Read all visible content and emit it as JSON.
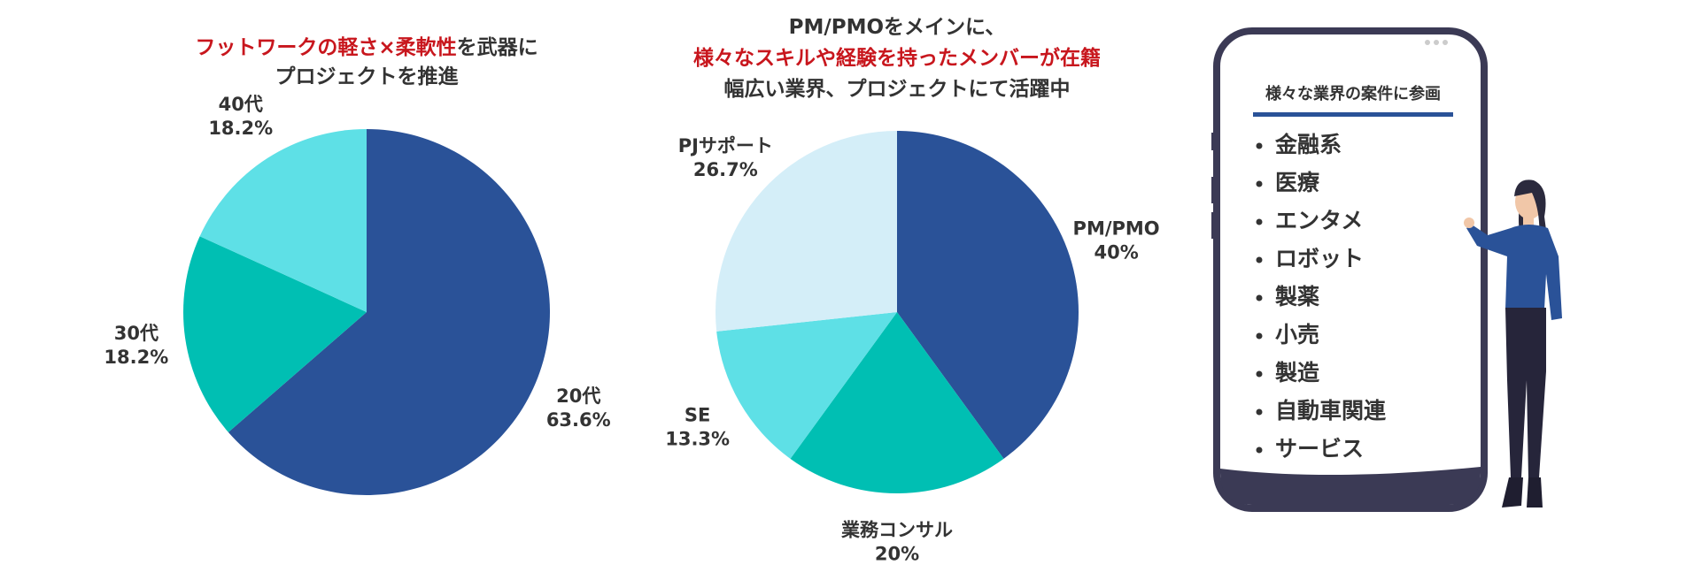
{
  "chart_data": [
    {
      "type": "pie",
      "title": [
        [
          {
            "text": "フットワークの軽さ×柔軟性",
            "color": "#c8161d"
          },
          {
            "text": "を武器に",
            "color": "#333333"
          }
        ],
        [
          {
            "text": "プロジェクトを推進",
            "color": "#333333"
          }
        ]
      ],
      "categories": [
        "20代",
        "30代",
        "40代"
      ],
      "values": [
        63.6,
        18.2,
        18.2
      ],
      "value_labels": [
        "63.6%",
        "18.2%",
        "18.2%"
      ],
      "colors": [
        "#2a5298",
        "#00bfb3",
        "#5ee0e6"
      ]
    },
    {
      "type": "pie",
      "title": [
        [
          {
            "text": "PM/PMOをメインに、",
            "color": "#333333"
          }
        ],
        [
          {
            "text": "様々なスキルや経験を持ったメンバーが在籍",
            "color": "#c8161d"
          }
        ],
        [
          {
            "text": "幅広い業界、プロジェクトにて活躍中",
            "color": "#333333"
          }
        ]
      ],
      "categories": [
        "PM/PMO",
        "業務コンサル",
        "SE",
        "PJサポート"
      ],
      "values": [
        40,
        20,
        13.3,
        26.7
      ],
      "value_labels": [
        "40%",
        "20%",
        "13.3%",
        "26.7%"
      ],
      "colors": [
        "#2a5298",
        "#00bfb3",
        "#5ee0e6",
        "#d4eef8"
      ]
    }
  ],
  "phone": {
    "title": "様々な業界の案件に参画",
    "items": [
      "金融系",
      "医療",
      "エンタメ",
      "ロボット",
      "製薬",
      "小売",
      "製造",
      "自動車関連",
      "サービス"
    ]
  }
}
